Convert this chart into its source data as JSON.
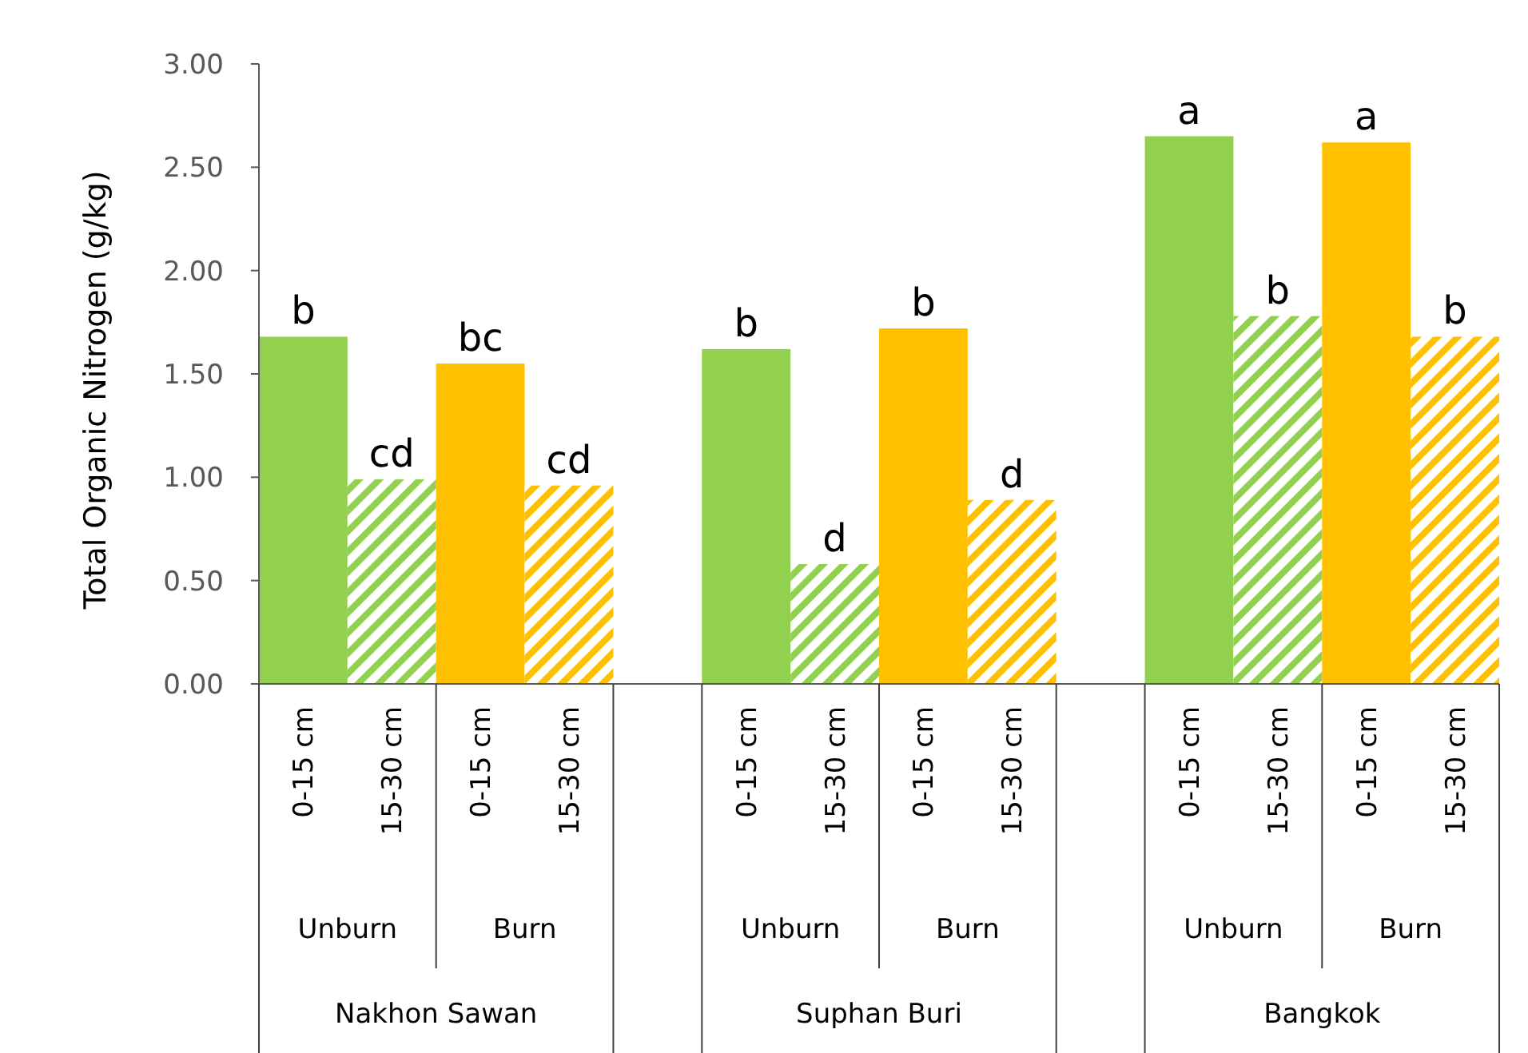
{
  "chart_data": {
    "type": "bar",
    "ylabel": "Total Organic Nitrogen (g/kg)",
    "categories": [
      "0-15 cm",
      "15-30 cm",
      "0-15 cm",
      "15-30 cm",
      "0-15 cm",
      "15-30 cm",
      "0-15 cm",
      "15-30 cm",
      "0-15 cm",
      "15-30 cm",
      "0-15 cm",
      "15-30 cm"
    ],
    "values": [
      1.68,
      0.99,
      1.55,
      0.96,
      1.62,
      0.58,
      1.72,
      0.89,
      2.65,
      1.78,
      2.62,
      1.68
    ],
    "colors": [
      "#92d050",
      "#92d050",
      "#ffc000",
      "#ffc000",
      "#92d050",
      "#92d050",
      "#ffc000",
      "#ffc000",
      "#92d050",
      "#92d050",
      "#ffc000",
      "#ffc000"
    ],
    "value_labels": [
      "b",
      "cd",
      "bc",
      "cd",
      "b",
      "d",
      "b",
      "d",
      "a",
      "b",
      "a",
      "b"
    ],
    "annotations": [
      "Unburn",
      "Burn",
      "Unburn",
      "Burn",
      "Unburn",
      "Burn",
      "Nakhon Sawan",
      "Suphan Buri",
      "Bangkok"
    ],
    "ylim": [
      0,
      3
    ],
    "yticks": [
      {
        "value": 0,
        "label": "0.00"
      },
      {
        "value": 0.5,
        "label": "0.50"
      },
      {
        "value": 1,
        "label": "1.00"
      },
      {
        "value": 1.5,
        "label": "1.50"
      },
      {
        "value": 2,
        "label": "2.00"
      },
      {
        "value": 2.5,
        "label": "2.50"
      },
      {
        "value": 3,
        "label": "3.00"
      }
    ],
    "grid": false
  }
}
